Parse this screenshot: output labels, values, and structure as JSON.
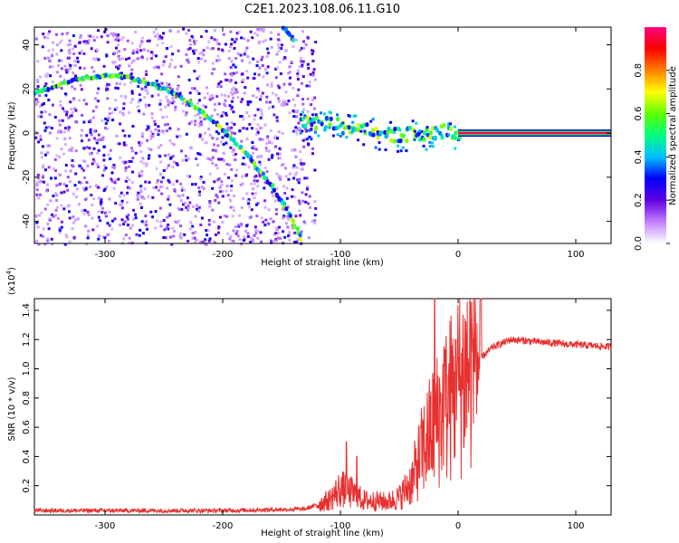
{
  "figure_title": "C2E1.2023.108.06.11.G10",
  "chart_data": [
    {
      "type": "heatmap",
      "xlabel": "Height of straight line (km)",
      "ylabel": "Frequency (Hz)",
      "xlim": [
        -360,
        130
      ],
      "ylim": [
        -50,
        48
      ],
      "xticks": [
        -300,
        -200,
        -100,
        0,
        100
      ],
      "xtick_labels": [
        "-300",
        "-200",
        "-100",
        "0",
        "100"
      ],
      "yticks": [
        -40,
        -20,
        0,
        20,
        40
      ],
      "ytick_labels": [
        "-40",
        "-20",
        "0",
        "20",
        "40"
      ],
      "colorbar": {
        "label": "Normalized spectral amplitude",
        "range": [
          0,
          1
        ],
        "ticks": [
          0.0,
          0.2,
          0.4,
          0.6,
          0.8
        ],
        "tick_labels": [
          "0.0",
          "0.2",
          "0.4",
          "0.6",
          "0.8"
        ],
        "colors": [
          "#ffffff",
          "#c080ff",
          "#6000e0",
          "#0000ff",
          "#00c0ff",
          "#00ff80",
          "#60ff00",
          "#ffff00",
          "#ff8000",
          "#ff0000",
          "#ff0080"
        ]
      },
      "features": [
        {
          "name": "",
          "points": [
            [
              -360,
              18
            ],
            [
              -340,
              22
            ],
            [
              -320,
              25
            ],
            [
              -300,
              26
            ],
            [
              -280,
              25
            ],
            [
              -260,
              22
            ],
            [
              -240,
              17
            ],
            [
              -220,
              10
            ],
            [
              -200,
              1
            ],
            [
              -180,
              -10
            ],
            [
              -160,
              -24
            ],
            [
              -150,
              -32
            ],
            [
              -140,
              -42
            ],
            [
              -135,
              -48
            ]
          ],
          "peak": 0.55
        },
        {
          "name": "",
          "points": [
            [
              -150,
              48
            ],
            [
              -142,
              42
            ]
          ],
          "peak": 0.45
        },
        {
          "name": "",
          "points": [
            [
              -135,
              5
            ],
            [
              -110,
              4
            ],
            [
              -90,
              2
            ],
            [
              -70,
              0
            ],
            [
              -50,
              -1
            ],
            [
              -35,
              0
            ],
            [
              -20,
              0
            ],
            [
              -10,
              1
            ],
            [
              0,
              0
            ]
          ],
          "peak": 0.55
        },
        {
          "name": "",
          "points": [
            [
              0,
              0
            ],
            [
              130,
              0
            ]
          ],
          "peak": 0.95
        }
      ]
    },
    {
      "type": "line",
      "xlabel": "Height of straight line (km)",
      "ylabel": "SNR (10 * v/v)",
      "scale_label": "(x10",
      "scale_exp": "4",
      "scale_close": ")",
      "xlim": [
        -360,
        130
      ],
      "ylim": [
        0,
        1.48
      ],
      "xticks": [
        -300,
        -200,
        -100,
        0,
        100
      ],
      "xtick_labels": [
        "-300",
        "-200",
        "-100",
        "0",
        "100"
      ],
      "yticks": [
        0.2,
        0.4,
        0.6,
        0.8,
        1.0,
        1.2,
        1.4
      ],
      "ytick_labels": [
        "0.2",
        "0.4",
        "0.6",
        "0.8",
        "1.0",
        "1.2",
        "1.4"
      ],
      "series": [
        {
          "name": "",
          "color": "#e8302f",
          "envelope": [
            [
              -360,
              0.03
            ],
            [
              -200,
              0.03
            ],
            [
              -130,
              0.04
            ],
            [
              -110,
              0.1
            ],
            [
              -100,
              0.18
            ],
            [
              -90,
              0.15
            ],
            [
              -80,
              0.1
            ],
            [
              -60,
              0.09
            ],
            [
              -50,
              0.12
            ],
            [
              -40,
              0.22
            ],
            [
              -30,
              0.45
            ],
            [
              -20,
              0.62
            ],
            [
              -10,
              0.75
            ],
            [
              0,
              0.9
            ],
            [
              10,
              1.02
            ],
            [
              20,
              1.08
            ],
            [
              30,
              1.15
            ],
            [
              45,
              1.2
            ],
            [
              60,
              1.19
            ],
            [
              90,
              1.17
            ],
            [
              130,
              1.15
            ]
          ],
          "spikes": [
            [
              -95,
              0.5
            ],
            [
              -86,
              0.4
            ],
            [
              -38,
              0.32
            ],
            [
              -32,
              0.6
            ],
            [
              -20,
              1.48
            ],
            [
              -12,
              1.15
            ],
            [
              -2,
              1.2
            ],
            [
              14,
              0.98
            ]
          ]
        }
      ]
    }
  ]
}
